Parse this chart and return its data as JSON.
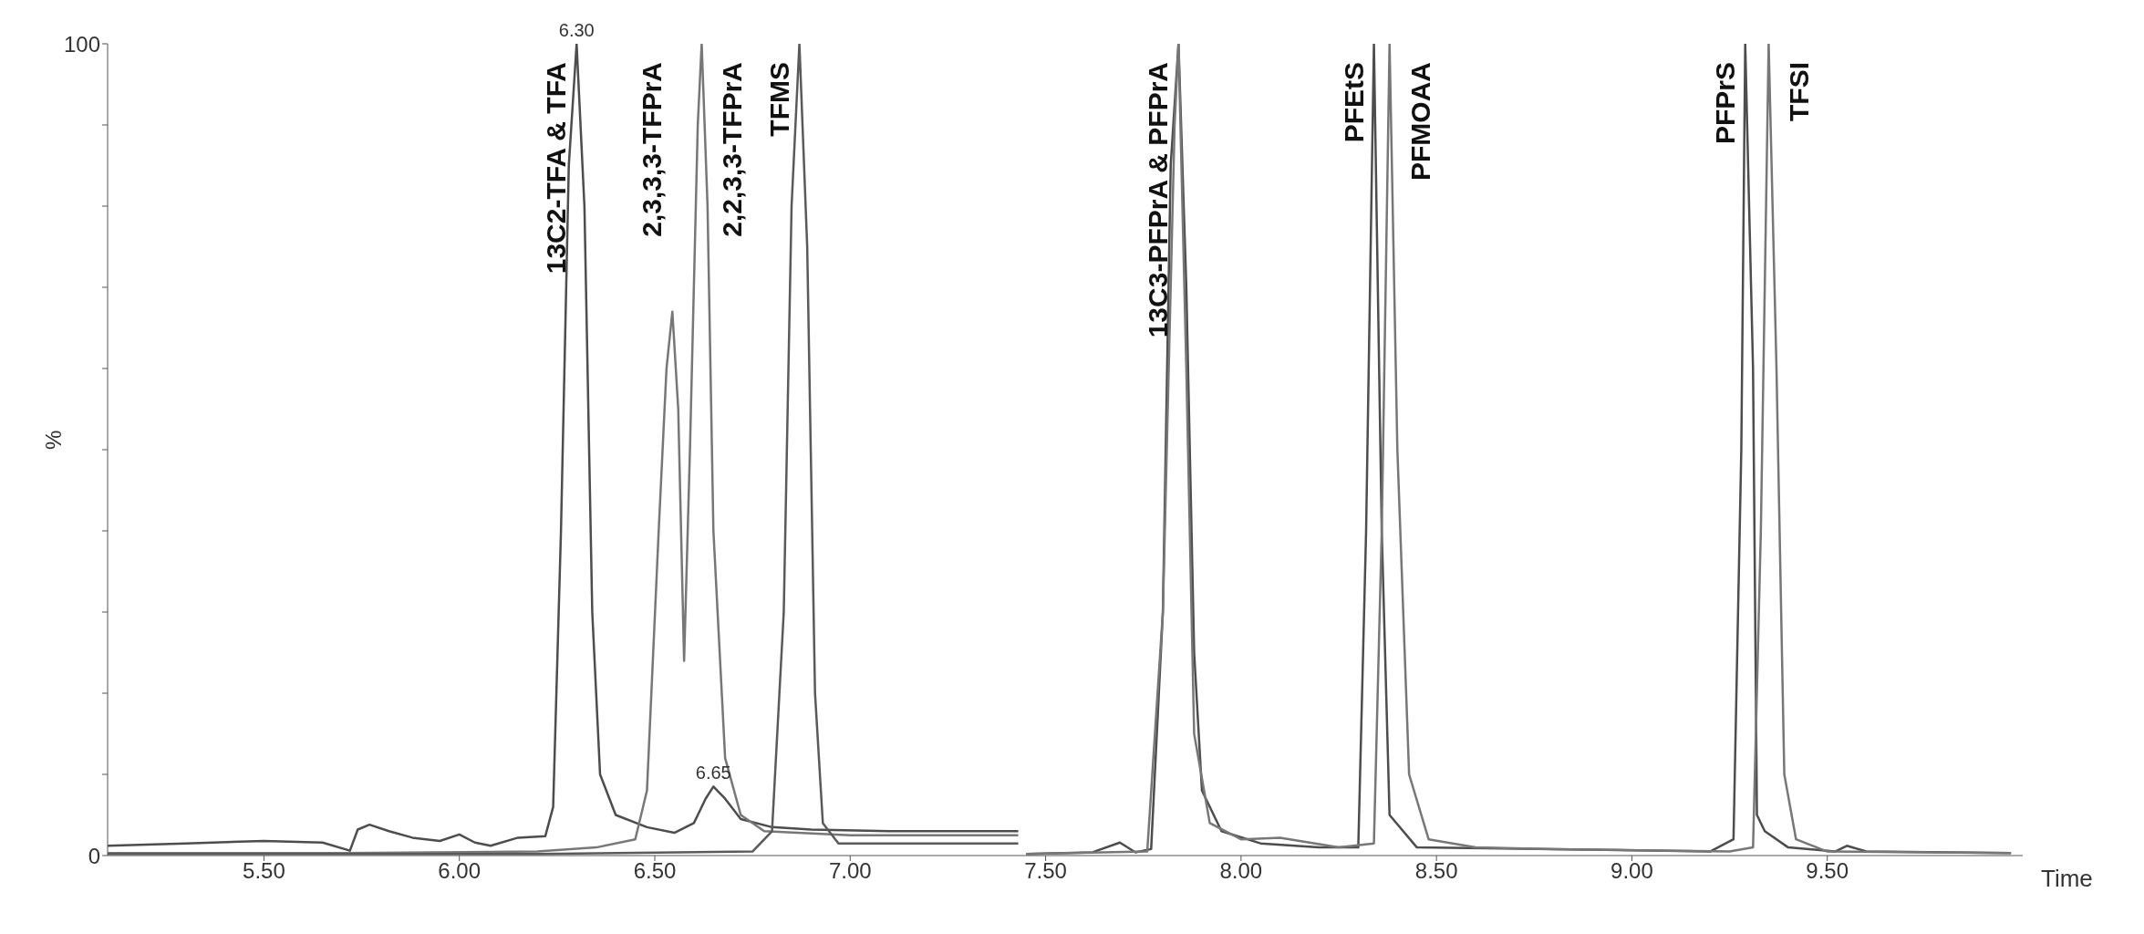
{
  "chart_data": {
    "type": "line",
    "xlabel": "Time",
    "ylabel": "%",
    "xlim": [
      5.1,
      10.0
    ],
    "ylim": [
      0,
      100
    ],
    "xticks": [
      {
        "value": 5.5,
        "label": "5.50"
      },
      {
        "value": 6,
        "label": "6.00"
      },
      {
        "value": 6.5,
        "label": "6.50"
      },
      {
        "value": 7,
        "label": "7.00"
      },
      {
        "value": 7.5,
        "label": "7.50"
      },
      {
        "value": 8,
        "label": "8.00"
      },
      {
        "value": 8.5,
        "label": "8.50"
      },
      {
        "value": 9,
        "label": "9.00"
      },
      {
        "value": 9.5,
        "label": "9.50"
      }
    ],
    "yticks": [
      0,
      {
        "value": 10,
        "label": null
      },
      {
        "value": 20,
        "label": null
      },
      {
        "value": 30,
        "label": null
      },
      {
        "value": 40,
        "label": null
      },
      {
        "value": 50,
        "label": null
      },
      {
        "value": 60,
        "label": null
      },
      {
        "value": 70,
        "label": null
      },
      {
        "value": 80,
        "label": null
      },
      {
        "value": 90,
        "label": null
      },
      100
    ],
    "marker": "none",
    "line_style": "solid",
    "series": [
      {
        "color": "#4d4d4d",
        "x": [
          5.1,
          5.3,
          5.5,
          5.65,
          5.72,
          5.74,
          5.77,
          5.82,
          5.88,
          5.95,
          6.0,
          6.04,
          6.08,
          6.15,
          6.22,
          6.24,
          6.26,
          6.28,
          6.3,
          6.32,
          6.34,
          6.36,
          6.4,
          6.48,
          6.55,
          6.6,
          6.63,
          6.65,
          6.68,
          6.72,
          6.8,
          6.9,
          7.1,
          7.43
        ],
        "values": [
          1.2,
          1.5,
          1.8,
          1.6,
          0.6,
          3.2,
          3.8,
          3.0,
          2.2,
          1.8,
          2.6,
          1.6,
          1.2,
          2.2,
          2.4,
          6,
          40,
          85,
          100,
          80,
          30,
          10,
          5,
          3.5,
          2.8,
          4,
          7,
          8.5,
          7,
          4.5,
          3.5,
          3.2,
          3.0,
          3.0
        ]
      },
      {
        "color": "#777777",
        "x": [
          5.1,
          5.7,
          6.2,
          6.35,
          6.45,
          6.48,
          6.51,
          6.53,
          6.545,
          6.56,
          6.575,
          6.59,
          6.61,
          6.62,
          6.635,
          6.65,
          6.68,
          6.72,
          6.78,
          7.0,
          7.43
        ],
        "values": [
          0.3,
          0.3,
          0.5,
          1.0,
          2.0,
          8,
          40,
          60,
          67,
          55,
          24,
          50,
          90,
          100,
          80,
          40,
          12,
          5,
          3.0,
          2.5,
          2.5
        ]
      },
      {
        "color": "#5a5a5a",
        "x": [
          5.1,
          6.2,
          6.75,
          6.8,
          6.83,
          6.85,
          6.87,
          6.89,
          6.91,
          6.93,
          6.97,
          7.2,
          7.43
        ],
        "values": [
          0.2,
          0.2,
          0.5,
          3,
          30,
          80,
          100,
          75,
          20,
          4,
          1.5,
          1.5,
          1.5
        ]
      },
      {
        "color": "#4d4d4d",
        "x": [
          7.45,
          7.62,
          7.69,
          7.73,
          7.77,
          7.8,
          7.82,
          7.84,
          7.86,
          7.88,
          7.9,
          7.95,
          8.05,
          8.2,
          8.3,
          8.32,
          8.34,
          8.36,
          8.38,
          8.45,
          8.8,
          9.2,
          9.26,
          9.28,
          9.29,
          9.31,
          9.32,
          9.34,
          9.4,
          9.52,
          9.55,
          9.6,
          9.97
        ],
        "values": [
          0.2,
          0.4,
          1.6,
          0.4,
          0.8,
          30,
          85,
          100,
          70,
          25,
          8,
          3,
          1.5,
          1.0,
          1.0,
          40,
          100,
          40,
          5,
          1.0,
          0.8,
          0.5,
          2,
          50,
          100,
          60,
          5,
          3,
          1,
          0.5,
          1.2,
          0.5,
          0.3
        ]
      },
      {
        "color": "#777777",
        "x": [
          7.45,
          7.76,
          7.8,
          7.83,
          7.84,
          7.86,
          7.88,
          7.92,
          8.0,
          8.1,
          8.25,
          8.34,
          8.36,
          8.38,
          8.4,
          8.43,
          8.48,
          8.6,
          8.8,
          9.25,
          9.31,
          9.33,
          9.35,
          9.37,
          9.39,
          9.42,
          9.5,
          9.97
        ],
        "values": [
          0.2,
          0.5,
          30,
          90,
          100,
          60,
          15,
          4,
          2,
          2.2,
          1.0,
          1.5,
          40,
          100,
          50,
          10,
          2,
          1,
          0.8,
          0.5,
          1,
          40,
          100,
          60,
          10,
          2,
          0.5,
          0.3
        ]
      }
    ],
    "annotations": [
      {
        "text": "6.30",
        "x": 6.3,
        "y": 100
      },
      {
        "text": "13C2-TFA & TFA",
        "x": 6.3,
        "y": 100
      },
      {
        "text": "2,3,3,3-TFPrA",
        "x": 6.545,
        "y": 67
      },
      {
        "text": "6.65",
        "x": 6.65,
        "y": 8.5
      },
      {
        "text": "2,2,3,3-TFPrA",
        "x": 6.62,
        "y": 100
      },
      {
        "text": "TFMS",
        "x": 6.87,
        "y": 100
      },
      {
        "text": "13C3-PFPrA & PFPrA",
        "x": 7.84,
        "y": 100
      },
      {
        "text": "PFEtS",
        "x": 8.34,
        "y": 100
      },
      {
        "text": "PFMOAA",
        "x": 8.38,
        "y": 100
      },
      {
        "text": "PFPrS",
        "x": 9.29,
        "y": 100
      },
      {
        "text": "TFSI",
        "x": 9.35,
        "y": 100
      }
    ]
  }
}
